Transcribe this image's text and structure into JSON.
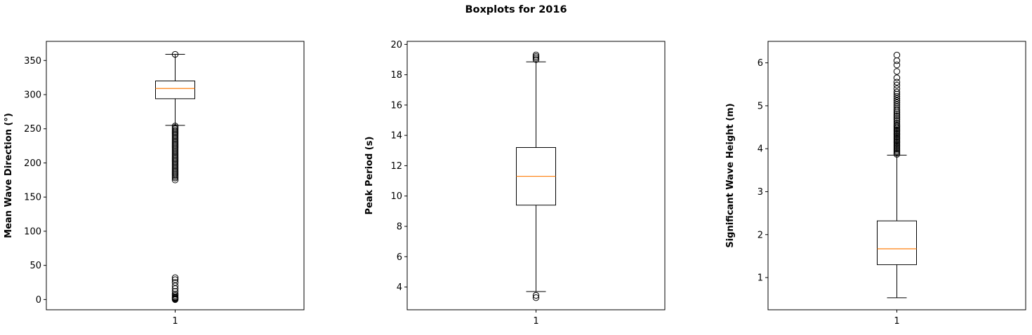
{
  "figure": {
    "title": "Boxplots for 2016"
  },
  "chart_data": [
    {
      "type": "box",
      "ylabel": "Mean Wave Direction (°)",
      "xticks": [
        "1"
      ],
      "ylim": [
        -15,
        378
      ],
      "yticks": [
        0,
        50,
        100,
        150,
        200,
        250,
        300,
        350
      ],
      "box": {
        "whisker_low": 255,
        "q1": 294,
        "median": 309,
        "q3": 320,
        "whisker_high": 359
      },
      "outliers": [
        0,
        1,
        2,
        3,
        4,
        6,
        8,
        12,
        16,
        20,
        25,
        29,
        32,
        175,
        178,
        180,
        182,
        184,
        186,
        188,
        190,
        192,
        194,
        196,
        198,
        200,
        202,
        204,
        206,
        208,
        210,
        212,
        214,
        216,
        218,
        220,
        222,
        224,
        226,
        228,
        230,
        232,
        234,
        236,
        238,
        240,
        242,
        244,
        246,
        248,
        250,
        252,
        254,
        359
      ]
    },
    {
      "type": "box",
      "ylabel": "Peak Period (s)",
      "xticks": [
        "1"
      ],
      "ylim": [
        2.5,
        20.2
      ],
      "yticks": [
        4,
        6,
        8,
        10,
        12,
        14,
        16,
        18,
        20
      ],
      "box": {
        "whisker_low": 3.7,
        "q1": 9.4,
        "median": 11.3,
        "q3": 13.2,
        "whisker_high": 18.85
      },
      "outliers": [
        3.3,
        3.45,
        19.0,
        19.1,
        19.2,
        19.3
      ]
    },
    {
      "type": "box",
      "ylabel": "Significant Wave Height (m)",
      "xticks": [
        "1"
      ],
      "ylim": [
        0.25,
        6.5
      ],
      "yticks": [
        1,
        2,
        3,
        4,
        5,
        6
      ],
      "box": {
        "whisker_low": 0.53,
        "q1": 1.3,
        "median": 1.67,
        "q3": 2.32,
        "whisker_high": 3.85
      },
      "outliers": [
        3.87,
        3.9,
        3.93,
        3.96,
        3.99,
        4.02,
        4.05,
        4.08,
        4.11,
        4.14,
        4.17,
        4.2,
        4.23,
        4.26,
        4.29,
        4.32,
        4.35,
        4.38,
        4.41,
        4.44,
        4.47,
        4.5,
        4.53,
        4.56,
        4.6,
        4.64,
        4.68,
        4.72,
        4.76,
        4.8,
        4.84,
        4.88,
        4.92,
        4.97,
        5.02,
        5.07,
        5.12,
        5.17,
        5.22,
        5.27,
        5.32,
        5.4,
        5.48,
        5.55,
        5.65,
        5.8,
        5.95,
        6.05,
        6.18
      ]
    }
  ]
}
